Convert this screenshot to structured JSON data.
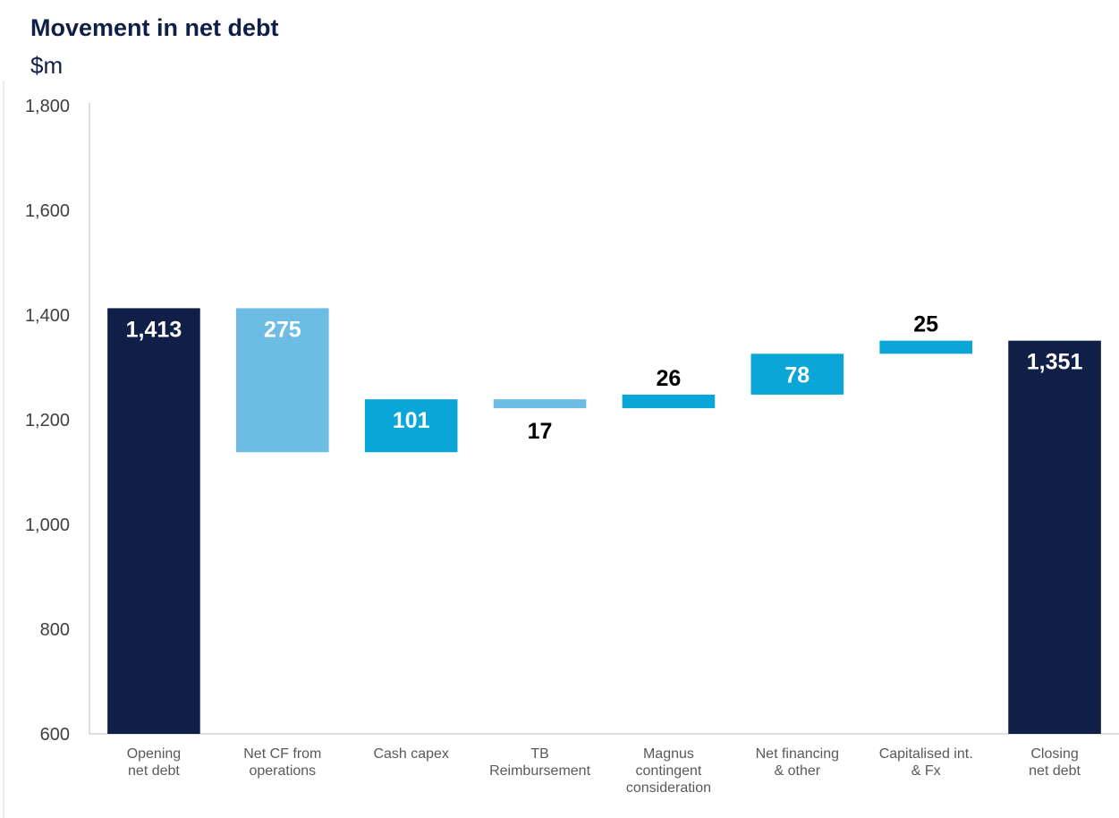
{
  "chart_data": {
    "type": "bar",
    "subtype": "waterfall",
    "title": "Movement in net debt",
    "subtitle": "$m",
    "xlabel": "",
    "ylabel": "",
    "ylim": [
      600,
      1800
    ],
    "yticks": [
      600,
      800,
      1000,
      1200,
      1400,
      1600,
      1800
    ],
    "ytick_labels": [
      "600",
      "800",
      "1,000",
      "1,200",
      "1,400",
      "1,600",
      "1,800"
    ],
    "grid": false,
    "legend": "none",
    "categories": [
      [
        "Opening",
        "net debt"
      ],
      [
        "Net CF from",
        "operations"
      ],
      [
        "Cash capex"
      ],
      [
        "TB",
        "Reimbursement"
      ],
      [
        "Magnus",
        "contingent",
        "consideration"
      ],
      [
        "Net financing",
        "& other"
      ],
      [
        "Capitalised int.",
        "& Fx"
      ],
      [
        "Closing",
        "net debt"
      ]
    ],
    "bars": [
      {
        "kind": "total",
        "start": 0,
        "end": 1413,
        "label": "1,413",
        "color": "#0f1f47",
        "label_color": "#ffffff",
        "label_pos": "inside"
      },
      {
        "kind": "delta",
        "start": 1413,
        "end": 1138,
        "label": "275",
        "color": "#6cbce3",
        "label_color": "#ffffff",
        "label_pos": "inside"
      },
      {
        "kind": "delta",
        "start": 1138,
        "end": 1239,
        "label": "101",
        "color": "#0ba6d8",
        "label_color": "#ffffff",
        "label_pos": "inside"
      },
      {
        "kind": "delta",
        "start": 1239,
        "end": 1222,
        "label": "17",
        "color": "#6cbce3",
        "label_color": "#000000",
        "label_pos": "below"
      },
      {
        "kind": "delta",
        "start": 1222,
        "end": 1248,
        "label": "26",
        "color": "#0ba6d8",
        "label_color": "#000000",
        "label_pos": "above"
      },
      {
        "kind": "delta",
        "start": 1248,
        "end": 1326,
        "label": "78",
        "color": "#0ba6d8",
        "label_color": "#ffffff",
        "label_pos": "inside"
      },
      {
        "kind": "delta",
        "start": 1326,
        "end": 1351,
        "label": "25",
        "color": "#0ba6d8",
        "label_color": "#000000",
        "label_pos": "above"
      },
      {
        "kind": "total",
        "start": 0,
        "end": 1351,
        "label": "1,351",
        "color": "#0f1f47",
        "label_color": "#ffffff",
        "label_pos": "inside"
      }
    ]
  }
}
